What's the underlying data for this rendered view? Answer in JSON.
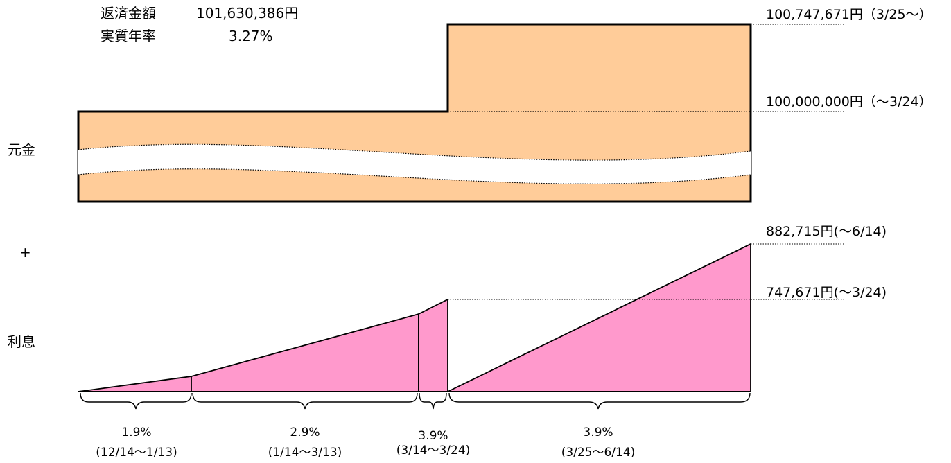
{
  "summary": {
    "repay_label": "返済金額",
    "repay_value": "101,630,386円",
    "rate_label": "実質年率",
    "rate_value": "3.27%"
  },
  "side_labels": {
    "principal": "元金",
    "plus": "+",
    "interest": "利息"
  },
  "principal": {
    "before": "100,000,000円（～3/24）",
    "after": "100,747,671円（3/25～）"
  },
  "interest": {
    "after": "882,715円(～6/14)",
    "before": "747,671円(～3/24)"
  },
  "periods": [
    {
      "rate": "1.9%",
      "range": "(12/14～1/13)"
    },
    {
      "rate": "2.9%",
      "range": "(1/14～3/13)"
    },
    {
      "rate": "3.9%",
      "range": "(3/14～3/24)"
    },
    {
      "rate": "3.9%",
      "range": "(3/25～6/14)"
    }
  ],
  "colors": {
    "principal_fill": "#FFCC99",
    "interest_fill": "#FF99CC",
    "outline": "#000000"
  }
}
